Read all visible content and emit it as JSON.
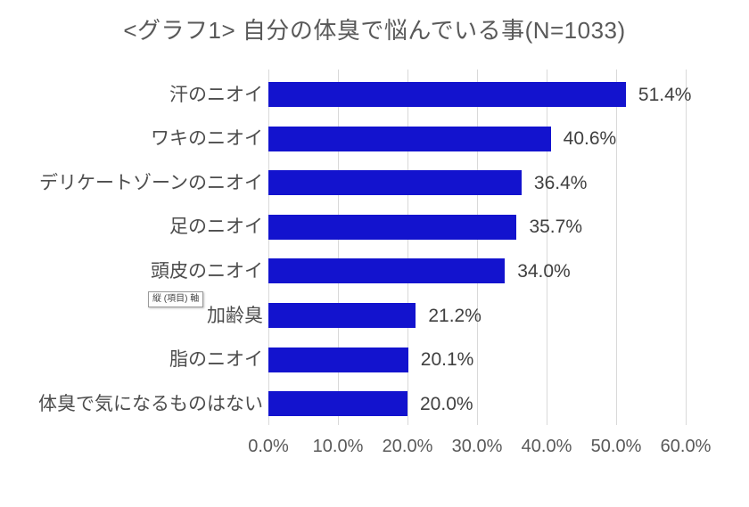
{
  "window": {
    "background": "#ffffff"
  },
  "chart_data": {
    "type": "bar",
    "orientation": "horizontal",
    "title": "<グラフ1> 自分の体臭で悩んでいる事(N=1033)",
    "categories": [
      "汗のニオイ",
      "ワキのニオイ",
      "デリケートゾーンのニオイ",
      "足のニオイ",
      "頭皮のニオイ",
      "加齢臭",
      "脂のニオイ",
      "体臭で気になるものはない"
    ],
    "values": [
      51.4,
      40.6,
      36.4,
      35.7,
      34.0,
      21.2,
      20.1,
      20.0
    ],
    "data_labels": [
      "51.4%",
      "40.6%",
      "36.4%",
      "35.7%",
      "34.0%",
      "21.2%",
      "20.1%",
      "20.0%"
    ],
    "x_ticks": [
      "0.0%",
      "10.0%",
      "20.0%",
      "30.0%",
      "40.0%",
      "50.0%",
      "60.0%"
    ],
    "x_tick_values": [
      0,
      10,
      20,
      30,
      40,
      50,
      60
    ],
    "xlim": [
      0,
      60
    ],
    "xlabel": "",
    "ylabel": "",
    "grid": true,
    "legend": false
  },
  "tooltip": {
    "text": "縦 (項目) 軸"
  },
  "colors": {
    "bar": "#1313ce",
    "grid": "#d9d9d9",
    "title_text": "#595959",
    "category_text": "#4d4d4d",
    "value_text": "#404040",
    "tick_text": "#595959"
  }
}
